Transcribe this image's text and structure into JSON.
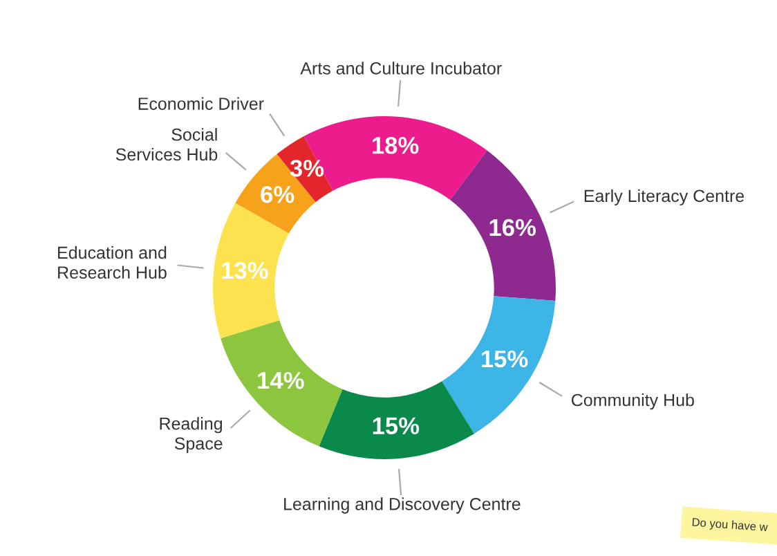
{
  "chart_data": {
    "type": "donut",
    "categories": [
      "Arts and Culture Incubator",
      "Early Literacy Centre",
      "Community Hub",
      "Learning and Discovery Centre",
      "Reading\nSpace",
      "Education and\nResearch Hub",
      "Social\nServices Hub",
      "Economic Driver"
    ],
    "values": [
      18,
      16,
      15,
      15,
      14,
      13,
      6,
      3
    ],
    "value_labels": [
      "18%",
      "16%",
      "15%",
      "15%",
      "14%",
      "13%",
      "6%",
      "3%"
    ],
    "colors": [
      "#ec1c8c",
      "#8e2a8f",
      "#3cb4e6",
      "#0a8a4a",
      "#8cc63f",
      "#fde24f",
      "#f7a21b",
      "#e3262b"
    ],
    "annotations": [
      "Do you have w"
    ],
    "legend": false
  }
}
